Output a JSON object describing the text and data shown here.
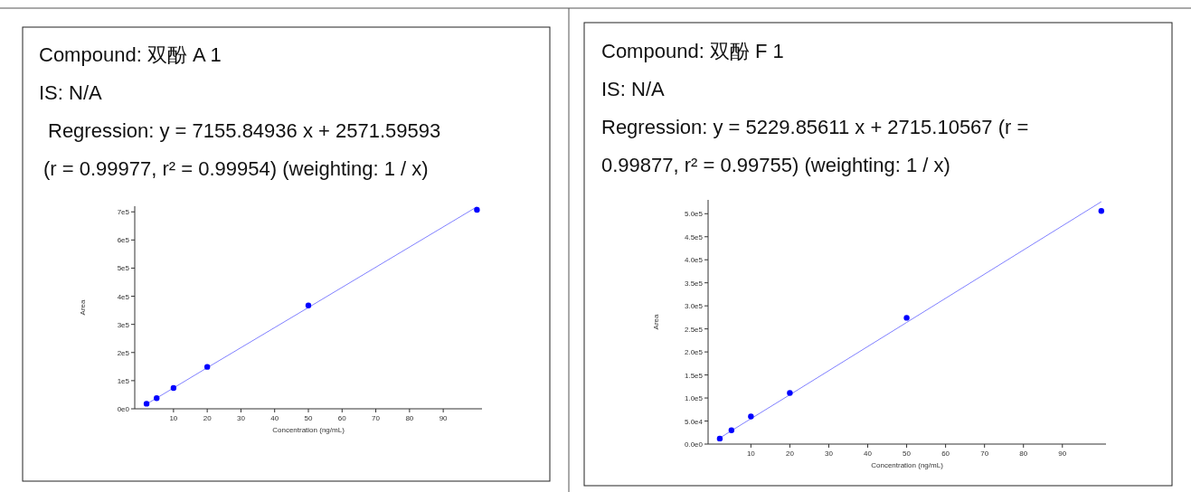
{
  "chart_data": [
    {
      "type": "scatter",
      "title": "Compound:  双酚 A 1",
      "subtitle": "IS: N/A",
      "annotations": [
        "Regression: y = 7155.84936 x + 2571.59593",
        "(r = 0.99977, r² = 0.99954)   (weighting: 1 / x)"
      ],
      "xlabel": "Concentration (ng/mL)",
      "ylabel": "Area",
      "x": [
        2,
        5,
        10,
        20,
        50,
        100
      ],
      "series": [
        {
          "type": "scatter",
          "color": "#0000ff",
          "marker": "circle",
          "values": [
            18000,
            38000,
            74000,
            149000,
            367000,
            707000
          ]
        },
        {
          "type": "line",
          "color": "#8080ff",
          "values": [
            17000,
            38000,
            74000,
            146000,
            360000,
            718000
          ]
        }
      ],
      "xlim": [
        -1.5,
        101.5
      ],
      "ylim": [
        0,
        720000
      ],
      "xticks": [
        10,
        20,
        30,
        40,
        50,
        60,
        70,
        80,
        90
      ],
      "yticks": [
        {
          "value": 0,
          "label": "0e0"
        },
        {
          "value": 100000,
          "label": "1e5"
        },
        {
          "value": 200000,
          "label": "2e5"
        },
        {
          "value": 300000,
          "label": "3e5"
        },
        {
          "value": 400000,
          "label": "4e5"
        },
        {
          "value": 500000,
          "label": "5e5"
        },
        {
          "value": 600000,
          "label": "6e5"
        },
        {
          "value": 700000,
          "label": "7e5"
        }
      ]
    },
    {
      "type": "scatter",
      "title": "Compound:  双酚 F 1",
      "subtitle": "IS: N/A",
      "annotations": [
        "Regression: y = 5229.85611 x + 2715.10567 (r =",
        "0.99877, r² = 0.99755)   (weighting: 1 / x)"
      ],
      "xlabel": "Concentration (ng/mL)",
      "ylabel": "Area",
      "x": [
        2,
        5,
        10,
        20,
        50,
        100
      ],
      "series": [
        {
          "type": "scatter",
          "color": "#0000ff",
          "marker": "circle",
          "values": [
            12000,
            30000,
            60000,
            111000,
            274000,
            506000
          ]
        },
        {
          "type": "line",
          "color": "#8080ff",
          "values": [
            13000,
            29000,
            55000,
            107000,
            264000,
            526000
          ]
        }
      ],
      "xlim": [
        -1,
        101.2
      ],
      "ylim": [
        0,
        530000
      ],
      "xticks": [
        10,
        20,
        30,
        40,
        50,
        60,
        70,
        80,
        90
      ],
      "yticks": [
        {
          "value": 0,
          "label": "0.0e0"
        },
        {
          "value": 50000,
          "label": "5.0e4"
        },
        {
          "value": 100000,
          "label": "1.0e5"
        },
        {
          "value": 150000,
          "label": "1.5e5"
        },
        {
          "value": 200000,
          "label": "2.0e5"
        },
        {
          "value": 250000,
          "label": "2.5e5"
        },
        {
          "value": 300000,
          "label": "3.0e5"
        },
        {
          "value": 350000,
          "label": "3.5e5"
        },
        {
          "value": 400000,
          "label": "4.0e5"
        },
        {
          "value": 450000,
          "label": "4.5e5"
        },
        {
          "value": 500000,
          "label": "5.0e5"
        }
      ]
    }
  ]
}
